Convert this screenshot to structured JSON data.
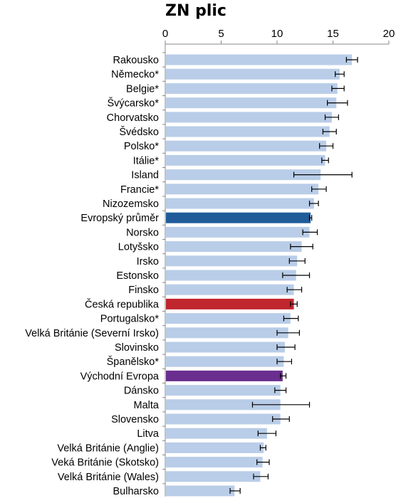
{
  "colors": {
    "default_bar": "#b9cde8",
    "average_bar": "#1f5c99",
    "czech_bar": "#c0262d",
    "east_europe_bar": "#6a2e8f",
    "error_bar": "#000000",
    "axis": "#888888"
  },
  "chart_data": {
    "type": "bar",
    "orientation": "horizontal",
    "title": "ZN plic",
    "xlabel": "",
    "ylabel": "",
    "xlim": [
      0,
      20
    ],
    "xticks": [
      0,
      5,
      10,
      15,
      20
    ],
    "x_axis_position": "top",
    "grid": false,
    "legend": "none",
    "categories": [
      "Rakousko",
      "Německo*",
      "Belgie*",
      "Švýcarsko*",
      "Chorvatsko",
      "Švédsko",
      "Polsko*",
      "Itálie*",
      "Island",
      "Francie*",
      "Nizozemsko",
      "Evropský průměr",
      "Norsko",
      "Lotyšsko",
      "Irsko",
      "Estonsko",
      "Finsko",
      "Česká republika",
      "Portugalsko*",
      "Velká Británie (Severní Irsko)",
      "Slovinsko",
      "Španělsko*",
      "Východní Evropa",
      "Dánsko",
      "Malta",
      "Slovensko",
      "Litva",
      "Velká Británie (Anglie)",
      "Veká Británie (Skotsko)",
      "Velká Británie (Wales)",
      "Bulharsko"
    ],
    "values": [
      16.7,
      15.6,
      15.4,
      15.3,
      14.9,
      14.7,
      14.4,
      14.3,
      13.9,
      13.7,
      13.3,
      13.0,
      12.9,
      12.2,
      11.8,
      11.7,
      11.5,
      11.5,
      11.2,
      11.0,
      10.7,
      10.6,
      10.5,
      10.3,
      10.3,
      10.3,
      9.1,
      8.8,
      8.7,
      8.5,
      6.2
    ],
    "error_low": [
      16.2,
      15.2,
      14.9,
      14.5,
      14.3,
      14.1,
      13.8,
      14.0,
      11.5,
      13.1,
      12.9,
      12.9,
      12.3,
      11.2,
      11.1,
      10.5,
      10.9,
      11.2,
      10.6,
      10.0,
      10.0,
      10.0,
      10.3,
      9.8,
      7.8,
      9.6,
      8.3,
      8.5,
      8.2,
      7.9,
      5.8
    ],
    "error_high": [
      17.2,
      16.0,
      16.0,
      16.3,
      15.5,
      15.3,
      15.0,
      14.6,
      16.7,
      14.4,
      13.7,
      13.1,
      13.6,
      13.2,
      12.5,
      12.9,
      12.2,
      11.8,
      11.9,
      12.0,
      11.6,
      11.3,
      10.8,
      10.8,
      12.9,
      11.1,
      9.9,
      9.0,
      9.3,
      9.2,
      6.7
    ],
    "highlight": {
      "Evropský průměr": "average_bar",
      "Česká republika": "czech_bar",
      "Východní Evropa": "east_europe_bar"
    }
  }
}
